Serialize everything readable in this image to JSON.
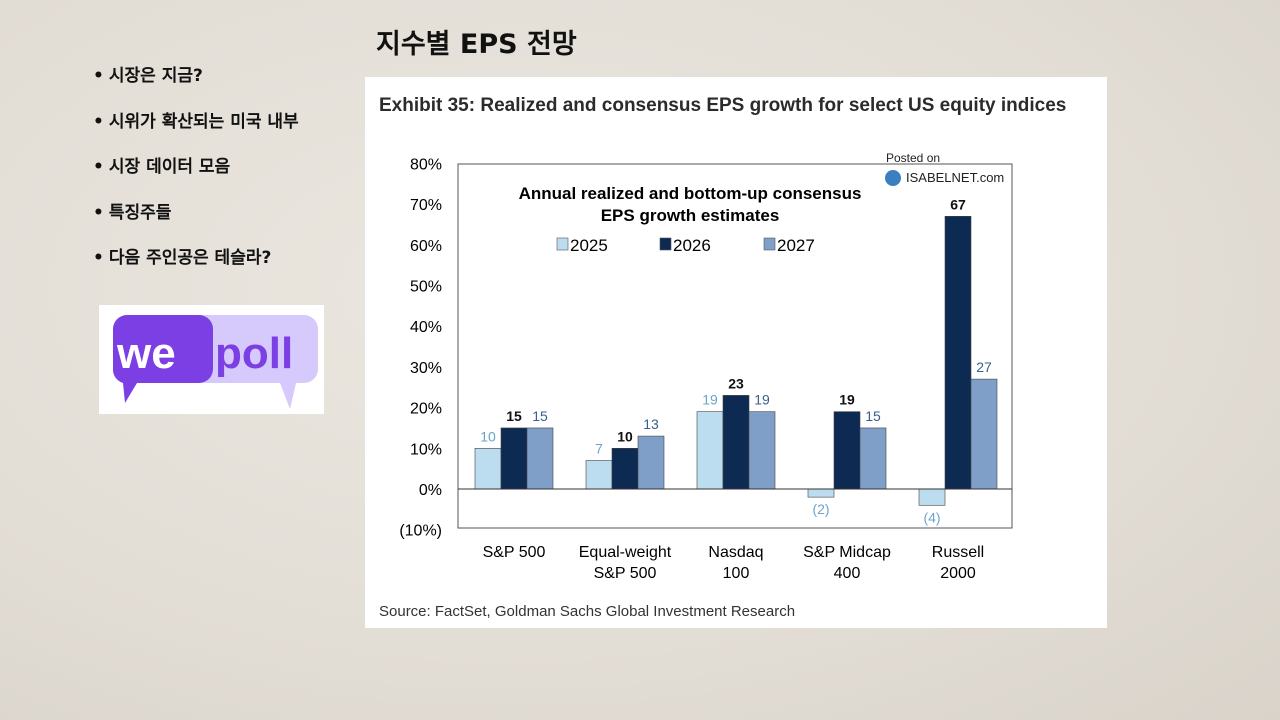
{
  "slide": {
    "title": "지수별 EPS 전망",
    "bullets": [
      "시장은 지금?",
      "시위가 확산되는 미국 내부",
      "시장 데이터 모음",
      "특징주들",
      "다음 주인공은 테슬라?"
    ],
    "logo": {
      "part1": "we",
      "part2": "poll"
    }
  },
  "exhibit": {
    "title": "Exhibit 35: Realized and consensus EPS growth for select US equity indices",
    "source": "Source: FactSet, Goldman Sachs Global Investment Research",
    "watermark": {
      "line1": "Posted on",
      "line2": "ISABELNET.com"
    }
  },
  "colors": {
    "2025": "#bcdcf0",
    "2026": "#0c2a52",
    "2027": "#7f9fc8"
  },
  "chart_data": {
    "type": "bar",
    "title": "Annual realized and bottom-up consensus",
    "title_line2": "EPS growth estimates",
    "categories": [
      [
        "S&P 500"
      ],
      [
        "Equal-weight",
        "S&P 500"
      ],
      [
        "Nasdaq",
        "100"
      ],
      [
        "S&P Midcap",
        "400"
      ],
      [
        "Russell",
        "2000"
      ]
    ],
    "series": [
      {
        "name": "2025",
        "values": [
          10,
          7,
          19,
          -2,
          -4
        ],
        "labels": [
          "10",
          "7",
          "19",
          "(2)",
          "(4)"
        ]
      },
      {
        "name": "2026",
        "values": [
          15,
          10,
          23,
          19,
          67
        ],
        "labels": [
          "15",
          "10",
          "23",
          "19",
          "67"
        ]
      },
      {
        "name": "2027",
        "values": [
          15,
          13,
          19,
          15,
          27
        ],
        "labels": [
          "15",
          "13",
          "19",
          "15",
          "27"
        ]
      }
    ],
    "yticks": [
      "80%",
      "70%",
      "60%",
      "50%",
      "40%",
      "30%",
      "20%",
      "10%",
      "0%",
      "(10%)"
    ],
    "ytick_values": [
      80,
      70,
      60,
      50,
      40,
      30,
      20,
      10,
      0,
      -10
    ],
    "ylim": [
      -10,
      80
    ],
    "legend": "top-center",
    "grid": false
  }
}
